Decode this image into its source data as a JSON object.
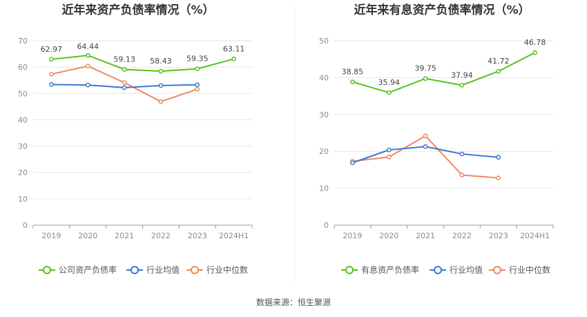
{
  "source": "数据来源：恒生聚源",
  "chart_data": [
    {
      "type": "line",
      "title": "近年来资产负债率情况（%）",
      "categories": [
        "2019",
        "2020",
        "2021",
        "2022",
        "2023",
        "2024H1"
      ],
      "ylim": [
        0,
        70
      ],
      "yticks": [
        0,
        10,
        20,
        30,
        40,
        50,
        60,
        70
      ],
      "grid": true,
      "legend_position": "bottom",
      "series": [
        {
          "name": "公司资产负债率",
          "color": "#52c41a",
          "values": [
            62.97,
            64.44,
            59.13,
            58.43,
            59.35,
            63.11
          ],
          "labels": [
            "62.97",
            "64.44",
            "59.13",
            "58.43",
            "59.35",
            "63.11"
          ]
        },
        {
          "name": "行业均值",
          "color": "#3a75d6",
          "values": [
            53.4,
            53.2,
            52.2,
            53.0,
            53.3,
            null
          ]
        },
        {
          "name": "行业中位数",
          "color": "#f0875a",
          "values": [
            57.3,
            60.4,
            54.1,
            46.9,
            51.6,
            null
          ]
        }
      ]
    },
    {
      "type": "line",
      "title": "近年来有息资产负债率情况（%）",
      "categories": [
        "2019",
        "2020",
        "2021",
        "2022",
        "2023",
        "2024H1"
      ],
      "ylim": [
        0,
        50
      ],
      "yticks": [
        0,
        10,
        20,
        30,
        40,
        50
      ],
      "grid": true,
      "legend_position": "bottom",
      "series": [
        {
          "name": "有息资产负债率",
          "color": "#52c41a",
          "values": [
            38.85,
            35.94,
            39.75,
            37.94,
            41.72,
            46.78
          ],
          "labels": [
            "38.85",
            "35.94",
            "39.75",
            "37.94",
            "41.72",
            "46.78"
          ]
        },
        {
          "name": "行业均值",
          "color": "#3a75d6",
          "values": [
            16.9,
            20.4,
            21.3,
            19.3,
            18.4,
            null
          ]
        },
        {
          "name": "行业中位数",
          "color": "#f0875a",
          "values": [
            17.3,
            18.5,
            24.2,
            13.6,
            12.8,
            null
          ]
        }
      ]
    }
  ]
}
